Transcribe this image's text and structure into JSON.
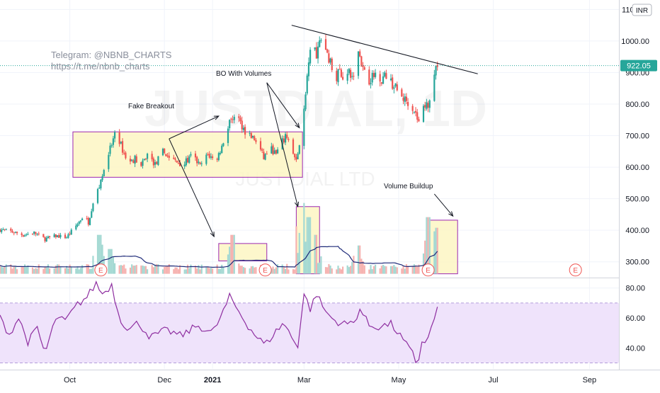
{
  "header": {
    "currency_badge": "INR",
    "telegram_label": "Telegram: @NBNB_CHARTS",
    "telegram_url": "https://t.me/nbnb_charts"
  },
  "watermark": {
    "symbol": "JUSTDIAL, 1D",
    "name": "JUST DIAL LTD"
  },
  "price_axis": {
    "ticks": [
      "1100.00",
      "1000.00",
      "900.00",
      "800.00",
      "700.00",
      "600.00",
      "500.00",
      "400.00",
      "300.00"
    ],
    "last_price_label": "922.05"
  },
  "rsi_axis": {
    "ticks": [
      "80.00",
      "60.00",
      "40.00"
    ]
  },
  "time_axis": {
    "ticks": [
      "Oct",
      "Dec",
      "2021",
      "Mar",
      "May",
      "Jul",
      "Sep"
    ]
  },
  "annotations": {
    "fake_breakout": "Fake Breakout",
    "bo_with_volumes": "BO With Volumes",
    "volume_buildup": "Volume Buildup"
  },
  "earnings_marker": "E",
  "colors": {
    "up": "#26a69a",
    "down": "#ef5350",
    "volume_up": "#a4d9d3",
    "volume_down": "#f6b2b0",
    "volume_ma": "#1e2a78",
    "rsi_line": "#8e2ea0",
    "rsi_band": "#efe3fb",
    "box_fill": "#fdf6c3",
    "box_border": "#9c27b0",
    "last_price": "#26a69a",
    "grid": "#f0f3fa",
    "axis_text": "#131722"
  },
  "chart_data": {
    "type": "candlestick",
    "symbol": "JUSTDIAL",
    "interval": "1D",
    "x_range": [
      "2020-08-17",
      "2021-09-20"
    ],
    "price_ylim": [
      250,
      1130
    ],
    "rsi_ylim": [
      26,
      86
    ],
    "rsi_band": [
      30,
      70
    ],
    "last_price": 922.05,
    "price_path": [
      [
        "2020-08-17",
        402
      ],
      [
        "2020-08-25",
        395
      ],
      [
        "2020-09-01",
        385
      ],
      [
        "2020-09-08",
        392
      ],
      [
        "2020-09-15",
        372
      ],
      [
        "2020-09-22",
        382
      ],
      [
        "2020-09-29",
        378
      ],
      [
        "2020-10-06",
        420
      ],
      [
        "2020-10-10",
        448
      ],
      [
        "2020-10-13",
        425
      ],
      [
        "2020-10-16",
        490
      ],
      [
        "2020-10-20",
        540
      ],
      [
        "2020-10-23",
        600
      ],
      [
        "2020-10-27",
        660
      ],
      [
        "2020-10-31",
        712
      ],
      [
        "2020-11-04",
        655
      ],
      [
        "2020-11-08",
        612
      ],
      [
        "2020-11-12",
        628
      ],
      [
        "2020-11-16",
        602
      ],
      [
        "2020-11-20",
        640
      ],
      [
        "2020-11-25",
        608
      ],
      [
        "2020-11-30",
        650
      ],
      [
        "2020-12-04",
        632
      ],
      [
        "2020-12-09",
        615
      ],
      [
        "2020-12-14",
        612
      ],
      [
        "2020-12-19",
        638
      ],
      [
        "2020-12-24",
        603
      ],
      [
        "2020-12-29",
        640
      ],
      [
        "2021-01-03",
        618
      ],
      [
        "2021-01-07",
        665
      ],
      [
        "2021-01-11",
        730
      ],
      [
        "2021-01-14",
        762
      ],
      [
        "2021-01-18",
        748
      ],
      [
        "2021-01-22",
        715
      ],
      [
        "2021-01-26",
        698
      ],
      [
        "2021-01-30",
        676
      ],
      [
        "2021-02-03",
        630
      ],
      [
        "2021-02-07",
        662
      ],
      [
        "2021-02-11",
        640
      ],
      [
        "2021-02-15",
        680
      ],
      [
        "2021-02-18",
        700
      ],
      [
        "2021-02-21",
        655
      ],
      [
        "2021-02-24",
        615
      ],
      [
        "2021-02-26",
        680
      ],
      [
        "2021-02-28",
        745
      ],
      [
        "2021-03-02",
        840
      ],
      [
        "2021-03-04",
        918
      ],
      [
        "2021-03-06",
        1000
      ],
      [
        "2021-03-09",
        960
      ],
      [
        "2021-03-12",
        1010
      ],
      [
        "2021-03-15",
        975
      ],
      [
        "2021-03-18",
        932
      ],
      [
        "2021-03-21",
        880
      ],
      [
        "2021-03-24",
        905
      ],
      [
        "2021-03-27",
        880
      ],
      [
        "2021-03-30",
        898
      ],
      [
        "2021-04-02",
        875
      ],
      [
        "2021-04-05",
        972
      ],
      [
        "2021-04-08",
        908
      ],
      [
        "2021-04-11",
        872
      ],
      [
        "2021-04-14",
        885
      ],
      [
        "2021-04-17",
        900
      ],
      [
        "2021-04-20",
        880
      ],
      [
        "2021-04-23",
        893
      ],
      [
        "2021-04-26",
        868
      ],
      [
        "2021-04-29",
        852
      ],
      [
        "2021-05-02",
        824
      ],
      [
        "2021-05-05",
        815
      ],
      [
        "2021-05-08",
        803
      ],
      [
        "2021-05-11",
        782
      ],
      [
        "2021-05-14",
        742
      ],
      [
        "2021-05-17",
        788
      ],
      [
        "2021-05-20",
        802
      ],
      [
        "2021-05-23",
        872
      ],
      [
        "2021-05-26",
        922
      ]
    ],
    "volume_spikes": [
      [
        "2020-10-20",
        0.55
      ],
      [
        "2020-10-27",
        0.35
      ],
      [
        "2021-01-14",
        0.55
      ],
      [
        "2021-02-28",
        1.0
      ],
      [
        "2021-03-04",
        0.8
      ],
      [
        "2021-03-08",
        0.55
      ],
      [
        "2021-04-05",
        0.4
      ],
      [
        "2021-05-20",
        0.8
      ],
      [
        "2021-05-24",
        0.6
      ],
      [
        "2021-05-26",
        0.65
      ]
    ],
    "rsi": [
      [
        "2020-08-17",
        60
      ],
      [
        "2020-08-23",
        49
      ],
      [
        "2020-08-29",
        60
      ],
      [
        "2020-09-04",
        44
      ],
      [
        "2020-09-10",
        53
      ],
      [
        "2020-09-15",
        36
      ],
      [
        "2020-09-22",
        60
      ],
      [
        "2020-09-28",
        58
      ],
      [
        "2020-10-06",
        69
      ],
      [
        "2020-10-12",
        74
      ],
      [
        "2020-10-18",
        83
      ],
      [
        "2020-10-22",
        76
      ],
      [
        "2020-10-28",
        82
      ],
      [
        "2020-11-02",
        60
      ],
      [
        "2020-11-08",
        52
      ],
      [
        "2020-11-14",
        57
      ],
      [
        "2020-11-22",
        47
      ],
      [
        "2020-12-02",
        52
      ],
      [
        "2020-12-12",
        48
      ],
      [
        "2020-12-22",
        55
      ],
      [
        "2021-01-01",
        50
      ],
      [
        "2021-01-07",
        62
      ],
      [
        "2021-01-12",
        74
      ],
      [
        "2021-01-17",
        66
      ],
      [
        "2021-01-23",
        56
      ],
      [
        "2021-01-29",
        48
      ],
      [
        "2021-02-04",
        42
      ],
      [
        "2021-02-10",
        50
      ],
      [
        "2021-02-16",
        57
      ],
      [
        "2021-02-21",
        47
      ],
      [
        "2021-02-25",
        42
      ],
      [
        "2021-03-01",
        76
      ],
      [
        "2021-03-05",
        66
      ],
      [
        "2021-03-09",
        76
      ],
      [
        "2021-03-15",
        64
      ],
      [
        "2021-03-21",
        58
      ],
      [
        "2021-03-27",
        56
      ],
      [
        "2021-04-02",
        57
      ],
      [
        "2021-04-06",
        66
      ],
      [
        "2021-04-12",
        55
      ],
      [
        "2021-04-18",
        54
      ],
      [
        "2021-04-26",
        56
      ],
      [
        "2021-05-02",
        48
      ],
      [
        "2021-05-06",
        42
      ],
      [
        "2021-05-10",
        36
      ],
      [
        "2021-05-13",
        28
      ],
      [
        "2021-05-16",
        44
      ],
      [
        "2021-05-20",
        46
      ],
      [
        "2021-05-23",
        57
      ],
      [
        "2021-05-26",
        66
      ]
    ],
    "trendline": [
      [
        "2021-02-21",
        1050
      ],
      [
        "2021-06-21",
        896
      ]
    ],
    "boxes": [
      {
        "label": "consolidation range",
        "x": [
          "2020-10-03",
          "2021-02-28"
        ],
        "y": [
          568,
          712
        ]
      },
      {
        "label": "fake breakout volume",
        "x": [
          "2021-01-05",
          "2021-02-05"
        ],
        "y": [
          303,
          358
        ]
      },
      {
        "label": "breakout volume",
        "x": [
          "2021-02-24",
          "2021-03-11"
        ],
        "y": [
          262,
          475
        ]
      },
      {
        "label": "volume buildup",
        "x": [
          "2021-05-19",
          "2021-06-08"
        ],
        "y": [
          262,
          432
        ]
      }
    ],
    "earnings_dates": [
      "2020-10-21",
      "2021-02-04",
      "2021-05-20",
      "2021-08-23"
    ],
    "price_ticks": [
      1100,
      1000,
      900,
      800,
      700,
      600,
      500,
      400,
      300
    ],
    "rsi_ticks": [
      80,
      60,
      40
    ],
    "time_ticks": [
      [
        "Oct",
        "2020-10-01"
      ],
      [
        "Dec",
        "2020-12-01"
      ],
      [
        "2021",
        "2021-01-01"
      ],
      [
        "Mar",
        "2021-03-01"
      ],
      [
        "May",
        "2021-05-01"
      ],
      [
        "Jul",
        "2021-07-01"
      ],
      [
        "Sep",
        "2021-09-01"
      ]
    ]
  }
}
